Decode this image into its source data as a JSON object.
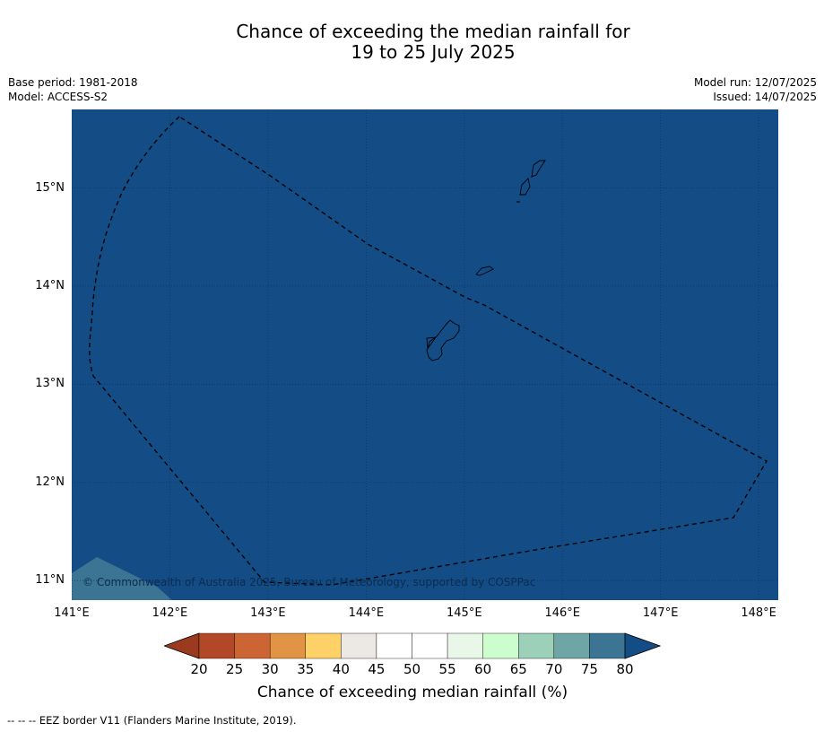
{
  "title": {
    "line1": "Chance of exceeding the median rainfall for",
    "line2": "19 to 25 July 2025"
  },
  "meta": {
    "base_period": "Base period: 1981-2018",
    "model": "Model: ACCESS-S2",
    "model_run": "Model run: 12/07/2025",
    "issued": "Issued: 14/07/2025"
  },
  "map": {
    "lon_range": [
      141.0,
      148.2
    ],
    "lat_range": [
      10.8,
      15.8
    ],
    "lat_ticks": [
      "15°N",
      "14°N",
      "13°N",
      "12°N",
      "11°N"
    ],
    "lon_ticks": [
      "141°E",
      "142°E",
      "143°E",
      "144°E",
      "145°E",
      "146°E",
      "147°E",
      "148°E"
    ],
    "background_probability_pct": 80,
    "colors": {
      "ocean_fill": "#144c85",
      "southwest_patch": "#3c7594",
      "gridline": "#0d3560",
      "coastline": "#000000"
    },
    "copyright": "© Commonwealth of Australia 2025, Bureau of Meteorology, supported by COSPPac"
  },
  "colorbar": {
    "title": "Chance of exceeding median rainfall (%)",
    "tick_labels": [
      "20",
      "25",
      "30",
      "35",
      "40",
      "45",
      "50",
      "55",
      "60",
      "65",
      "70",
      "75",
      "80"
    ],
    "under_color": "#9a3a1f",
    "over_color": "#144c85",
    "bin_colors": [
      "#b24827",
      "#cd6433",
      "#e29446",
      "#fed068",
      "#ece8e3",
      "#ffffff",
      "#ffffff",
      "#e8f7e8",
      "#ccfdcc",
      "#9dd0b9",
      "#6ea5a6",
      "#3c7594"
    ]
  },
  "footnote": "--  --  -- EEZ border V11 (Flanders Marine Institute, 2019)."
}
